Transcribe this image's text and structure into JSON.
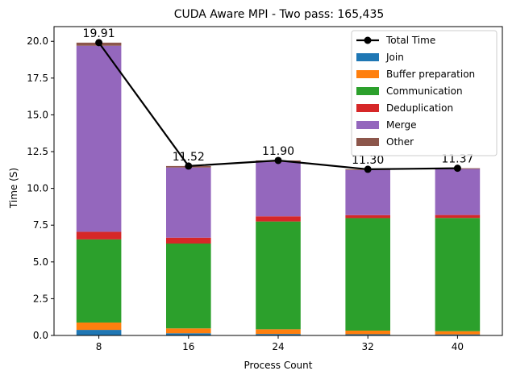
{
  "chart_data": {
    "type": "bar",
    "title": "CUDA Aware MPI - Two pass: 165,435",
    "xlabel": "Process Count",
    "ylabel": "Time (S)",
    "ylim": [
      0,
      21.0
    ],
    "yticks": [
      0.0,
      2.5,
      5.0,
      7.5,
      10.0,
      12.5,
      15.0,
      17.5,
      20.0
    ],
    "ytick_labels": [
      "0.0",
      "2.5",
      "5.0",
      "7.5",
      "10.0",
      "12.5",
      "15.0",
      "17.5",
      "20.0"
    ],
    "categories": [
      "8",
      "16",
      "24",
      "32",
      "40"
    ],
    "stacked": true,
    "legend_position": "top-right",
    "series": [
      {
        "name": "Join",
        "color": "#1f77b4",
        "values": [
          0.38,
          0.15,
          0.1,
          0.08,
          0.07
        ]
      },
      {
        "name": "Buffer preparation",
        "color": "#ff7f0e",
        "values": [
          0.5,
          0.33,
          0.32,
          0.25,
          0.22
        ]
      },
      {
        "name": "Communication",
        "color": "#2ca02c",
        "values": [
          5.65,
          5.77,
          7.33,
          7.65,
          7.7
        ]
      },
      {
        "name": "Deduplication",
        "color": "#d62728",
        "values": [
          0.52,
          0.4,
          0.35,
          0.2,
          0.2
        ]
      },
      {
        "name": "Merge",
        "color": "#9467bd",
        "values": [
          12.65,
          4.77,
          3.7,
          3.07,
          3.13
        ]
      },
      {
        "name": "Other",
        "color": "#8c564b",
        "values": [
          0.21,
          0.1,
          0.1,
          0.05,
          0.05
        ]
      }
    ],
    "line": {
      "name": "Total Time",
      "color": "#000000",
      "values": [
        19.91,
        11.52,
        11.9,
        11.3,
        11.37
      ],
      "labels": [
        "19.91",
        "11.52",
        "11.90",
        "11.30",
        "11.37"
      ]
    }
  }
}
